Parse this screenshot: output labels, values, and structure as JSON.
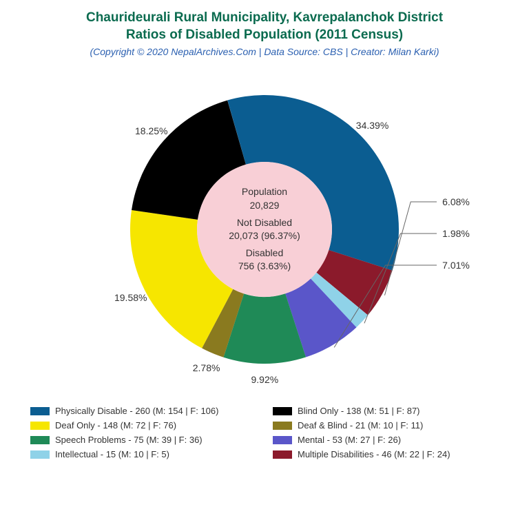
{
  "title_line1": "Chaurideurali Rural Municipality, Kavrepalanchok District",
  "title_line2": "Ratios of Disabled Population (2011 Census)",
  "title_color": "#0b6b4f",
  "title_fontsize": 19,
  "subtitle": "(Copyright © 2020 NepalArchives.Com | Data Source: CBS | Creator: Milan Karki)",
  "subtitle_color": "#2a5fb0",
  "subtitle_fontsize": 14,
  "chart": {
    "type": "donut",
    "outer_radius": 195,
    "inner_radius": 98,
    "inner_fill": "#f8cfd6",
    "start_angle_deg": -16,
    "label_fontsize": 14,
    "label_color": "#333333",
    "label_radius": 218,
    "slices": [
      {
        "label": "34.39%",
        "value": 34.39,
        "color": "#0b5d91"
      },
      {
        "label": "6.08%",
        "value": 6.08,
        "color": "#8b1a2b",
        "leader": true
      },
      {
        "label": "1.98%",
        "value": 1.98,
        "color": "#8fd2e8",
        "leader": true
      },
      {
        "label": "7.01%",
        "value": 7.01,
        "color": "#5a56c9",
        "leader": true
      },
      {
        "label": "9.92%",
        "value": 9.92,
        "color": "#1f8a57"
      },
      {
        "label": "2.78%",
        "value": 2.78,
        "color": "#8a7a1f"
      },
      {
        "label": "19.58%",
        "value": 19.58,
        "color": "#f6e600"
      },
      {
        "label": "18.25%",
        "value": 18.25,
        "color": "#000000"
      }
    ],
    "center_lines": [
      {
        "l1": "Population",
        "l2": "20,829"
      },
      {
        "l1": "Not Disabled",
        "l2": "20,073 (96.37%)"
      },
      {
        "l1": "Disabled",
        "l2": "756 (3.63%)"
      }
    ],
    "center_fontsize": 14,
    "center_color": "#333333"
  },
  "legend": {
    "fontsize": 13,
    "color": "#333333",
    "items": [
      {
        "swatch": "#0b5d91",
        "text": "Physically Disable - 260 (M: 154 | F: 106)"
      },
      {
        "swatch": "#000000",
        "text": "Blind Only - 138 (M: 51 | F: 87)"
      },
      {
        "swatch": "#f6e600",
        "text": "Deaf Only - 148 (M: 72 | F: 76)"
      },
      {
        "swatch": "#8a7a1f",
        "text": "Deaf & Blind - 21 (M: 10 | F: 11)"
      },
      {
        "swatch": "#1f8a57",
        "text": "Speech Problems - 75 (M: 39 | F: 36)"
      },
      {
        "swatch": "#5a56c9",
        "text": "Mental - 53 (M: 27 | F: 26)"
      },
      {
        "swatch": "#8fd2e8",
        "text": "Intellectual - 15 (M: 10 | F: 5)"
      },
      {
        "swatch": "#8b1a2b",
        "text": "Multiple Disabilities - 46 (M: 22 | F: 24)"
      }
    ]
  }
}
